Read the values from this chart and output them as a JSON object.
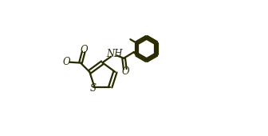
{
  "background_color": "#ffffff",
  "line_color": "#2a2a00",
  "line_width": 1.6,
  "figsize": [
    3.36,
    1.7
  ],
  "dpi": 100,
  "xlim": [
    0.0,
    1.0
  ],
  "ylim": [
    0.0,
    1.0
  ]
}
